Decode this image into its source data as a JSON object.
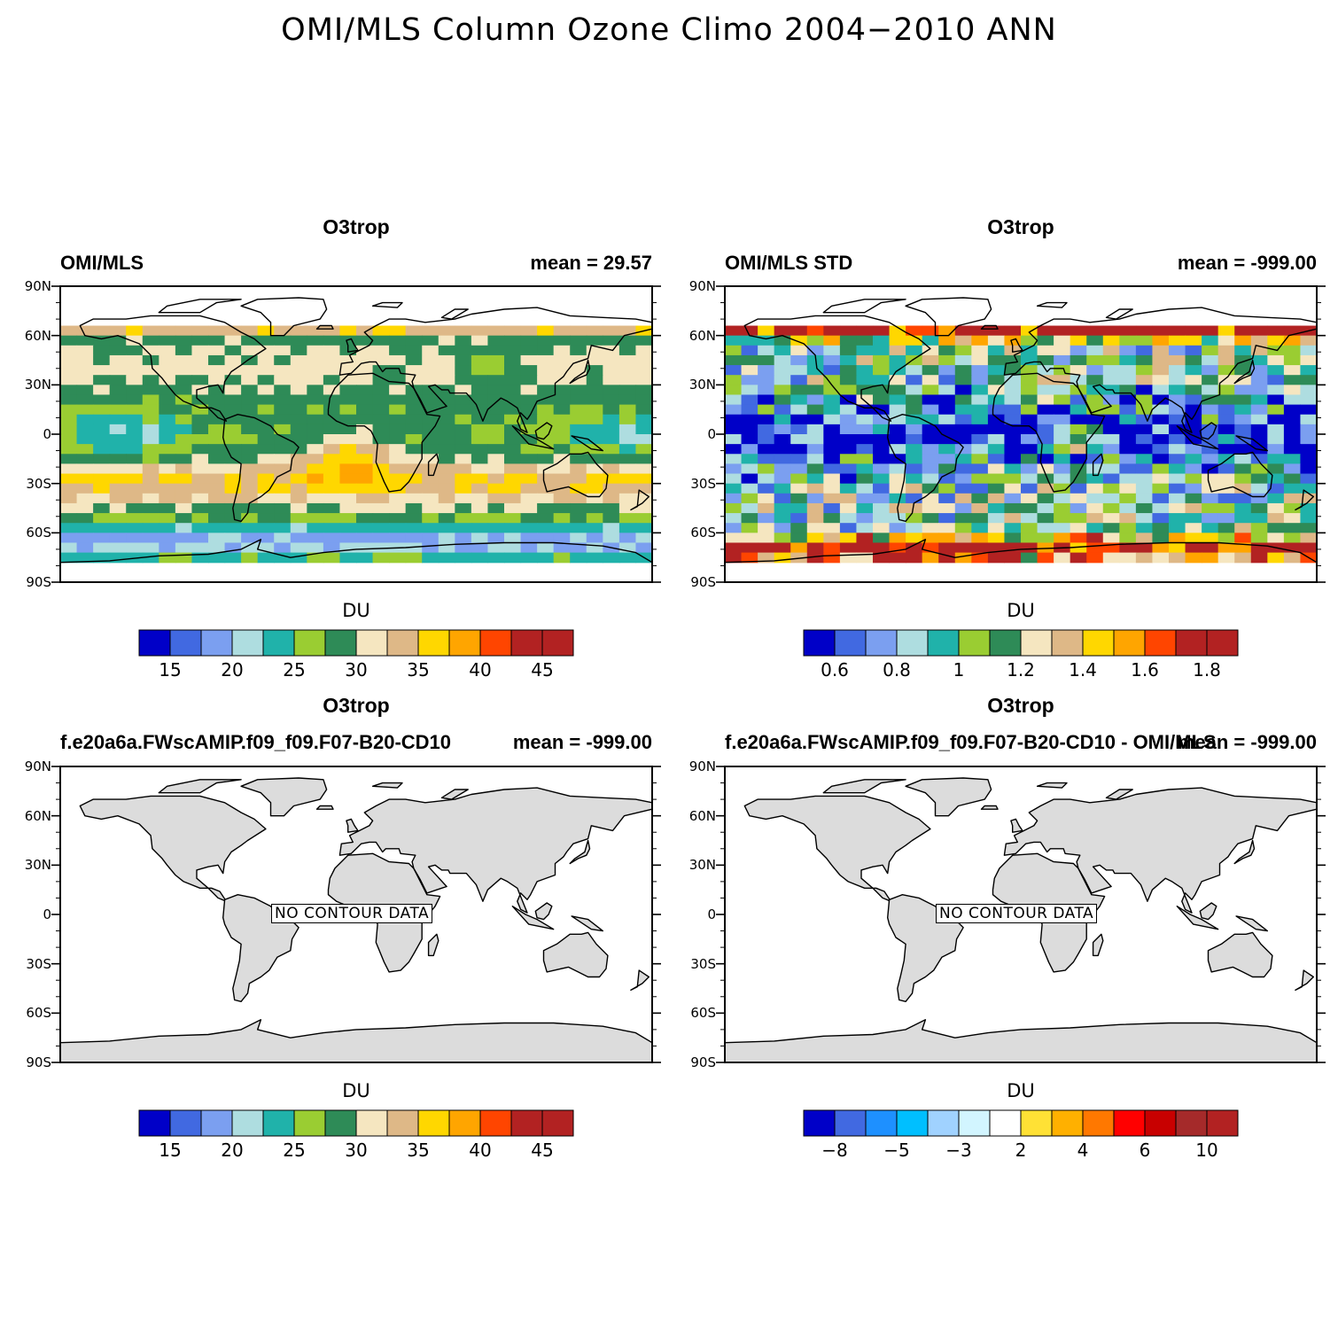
{
  "figure": {
    "title": "OMI/MLS Column Ozone Climo 2004−2010 ANN"
  },
  "panels": [
    {
      "title": "O3trop",
      "left_string": "OMI/MLS",
      "right_string": "mean =  29.57",
      "lat_labels": [
        "90N",
        "60N",
        "30N",
        "0",
        "30S",
        "60S",
        "90S"
      ],
      "colorbar": {
        "unit": "DU",
        "labels": [
          "15",
          "20",
          "25",
          "30",
          "35",
          "40",
          "45"
        ],
        "colors": [
          "#0000c8",
          "#4169e1",
          "#7b9ff0",
          "#aedde0",
          "#20b2aa",
          "#9acd32",
          "#2e8b57",
          "#f5e6c0",
          "#deb887",
          "#ffd700",
          "#ffa500",
          "#ff4500",
          "#b22222",
          "#b22222"
        ]
      },
      "no_data": false
    },
    {
      "title": "O3trop",
      "left_string": "OMI/MLS STD",
      "right_string": "mean = -999.00",
      "lat_labels": [
        "90N",
        "60N",
        "30N",
        "0",
        "30S",
        "60S",
        "90S"
      ],
      "colorbar": {
        "unit": "DU",
        "labels": [
          "0.6",
          "0.8",
          "1",
          "1.2",
          "1.4",
          "1.6",
          "1.8"
        ],
        "colors": [
          "#0000c8",
          "#4169e1",
          "#7b9ff0",
          "#aedde0",
          "#20b2aa",
          "#9acd32",
          "#2e8b57",
          "#f5e6c0",
          "#deb887",
          "#ffd700",
          "#ffa500",
          "#ff4500",
          "#b22222",
          "#b22222"
        ]
      },
      "no_data": false
    },
    {
      "title": "O3trop",
      "left_string": "f.e20a6a.FWscAMIP.f09_f09.F07-B20-CD10",
      "right_string": "mean = -999.00",
      "lat_labels": [
        "90N",
        "60N",
        "30N",
        "0",
        "30S",
        "60S",
        "90S"
      ],
      "colorbar": {
        "unit": "DU",
        "labels": [
          "15",
          "20",
          "25",
          "30",
          "35",
          "40",
          "45"
        ],
        "colors": [
          "#0000c8",
          "#4169e1",
          "#7b9ff0",
          "#aedde0",
          "#20b2aa",
          "#9acd32",
          "#2e8b57",
          "#f5e6c0",
          "#deb887",
          "#ffd700",
          "#ffa500",
          "#ff4500",
          "#b22222",
          "#b22222"
        ]
      },
      "no_data": true,
      "no_data_text": "NO CONTOUR DATA"
    },
    {
      "title": "O3trop",
      "left_string": "f.e20a6a.FWscAMIP.f09_f09.F07-B20-CD10 - OMI/MLS",
      "right_string": "mean = -999.00",
      "lat_labels": [
        "90N",
        "60N",
        "30N",
        "0",
        "30S",
        "60S",
        "90S"
      ],
      "colorbar": {
        "unit": "DU",
        "labels": [
          "−8",
          "−5",
          "−3",
          "2",
          "4",
          "6",
          "10"
        ],
        "colors": [
          "#0000c8",
          "#4169e1",
          "#1e90ff",
          "#00bfff",
          "#a0d2ff",
          "#d2f5ff",
          "#ffffff",
          "#ffe135",
          "#ffb000",
          "#ff7800",
          "#ff0000",
          "#c80000",
          "#a52a2a",
          "#b22222"
        ]
      },
      "no_data": true,
      "no_data_text": "NO CONTOUR DATA"
    }
  ]
}
